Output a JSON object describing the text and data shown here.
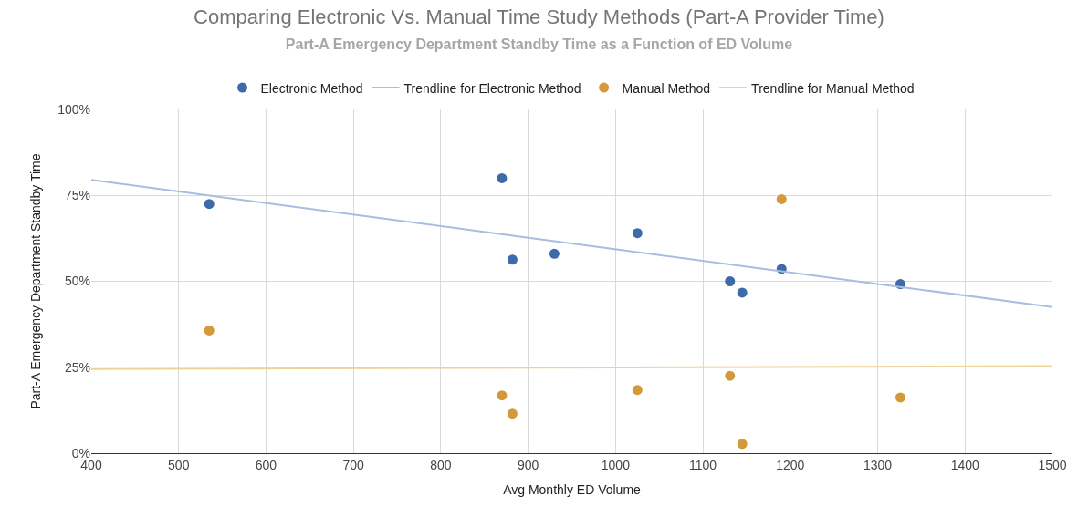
{
  "chart_data": {
    "type": "scatter",
    "title": "Comparing Electronic Vs. Manual Time Study Methods (Part-A Provider Time)",
    "subtitle": "Part-A Emergency Department Standby Time as a Function of ED Volume",
    "xlabel": "Avg Monthly ED Volume",
    "ylabel": "Part-A Emergency Department Standby Time",
    "series": [
      {
        "name": "Electronic Method",
        "color": "#3d6aa8",
        "marker": "circle",
        "x": [
          535,
          870,
          882,
          930,
          1025,
          1131,
          1145,
          1190,
          1326
        ],
        "values": [
          72.5,
          80,
          56.3,
          58,
          64,
          50,
          46.7,
          53.6,
          49.2
        ]
      },
      {
        "name": "Trendline for Electronic Method",
        "type": "line",
        "marker": "none",
        "color": "#a9bde0",
        "x": [
          400,
          1500
        ],
        "values": [
          79.5,
          42.5
        ]
      },
      {
        "name": "Manual Method",
        "color": "#d4993a",
        "marker": "circle",
        "x": [
          535,
          870,
          882,
          1025,
          1131,
          1145,
          1190,
          1326
        ],
        "values": [
          35.7,
          16.8,
          11.5,
          18.4,
          22.5,
          2.7,
          73.9,
          16.2
        ]
      },
      {
        "name": "Trendline for Manual Method",
        "type": "line",
        "marker": "none",
        "color": "#efd29a",
        "x": [
          400,
          1500
        ],
        "values": [
          24.5,
          25.3
        ]
      }
    ],
    "xlim": [
      400,
      1500
    ],
    "xticks": [
      400,
      500,
      600,
      700,
      800,
      900,
      1000,
      1100,
      1200,
      1300,
      1400,
      1500
    ],
    "ylim": [
      0,
      100
    ],
    "yticks": [
      {
        "value": 0,
        "label": "0%"
      },
      {
        "value": 25,
        "label": "25%"
      },
      {
        "value": 50,
        "label": "50%"
      },
      {
        "value": 75,
        "label": "75%"
      },
      {
        "value": 100,
        "label": "100%"
      }
    ],
    "grid": true,
    "legend": "top"
  }
}
